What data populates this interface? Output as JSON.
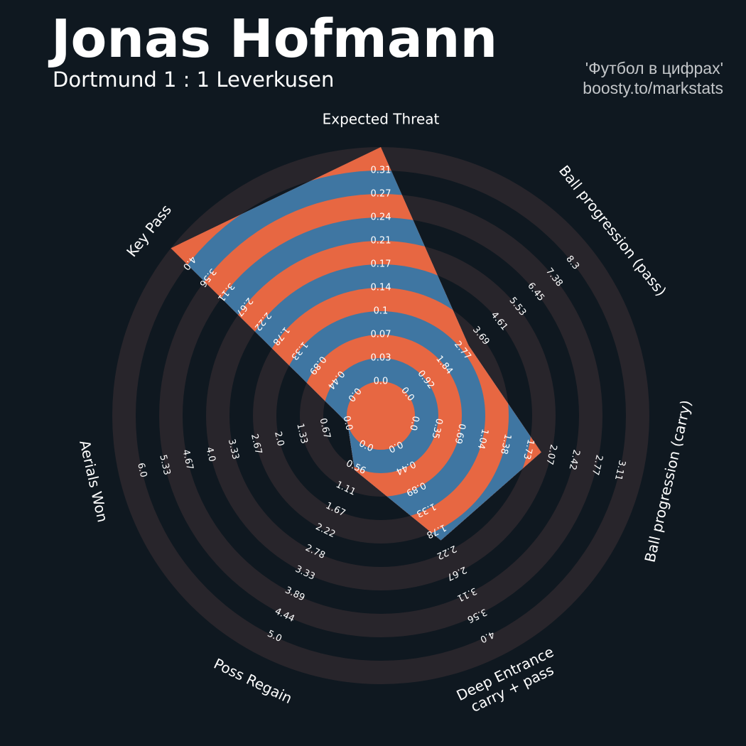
{
  "header": {
    "player_name": "Jonas Hofmann",
    "match": "Dortmund 1 : 1 Leverkusen",
    "credit_line1": "'Футбол в цифрах'",
    "credit_line2": "boosty.to/markstats"
  },
  "colors": {
    "background": "#0f1820",
    "ring_dark": "#28252b",
    "ring_light": "#0f1820",
    "polygon_main": "#3f76a2",
    "polygon_alt": "#e76742",
    "text": "#ffffff",
    "credit": "#c3c6c9"
  },
  "chart_data": {
    "type": "radar",
    "title": "Jonas Hofmann",
    "subtitle": "Dortmund 1 : 1 Leverkusen",
    "params": [
      {
        "name": "Expected Threat",
        "lines": [
          "Expected Threat"
        ],
        "value": 0.31,
        "ticks": [
          "0.0",
          "0.03",
          "0.07",
          "0.1",
          "0.14",
          "0.17",
          "0.21",
          "0.24",
          "0.27",
          "0.31"
        ]
      },
      {
        "name": "Ball progression (pass)",
        "lines": [
          "Ball progression (pass)"
        ],
        "value": 2.77,
        "ticks": [
          "0.0",
          "0.92",
          "1.84",
          "2.77",
          "3.69",
          "4.61",
          "5.53",
          "6.45",
          "7.38",
          "8.3"
        ]
      },
      {
        "name": "Ball progression (carry)",
        "lines": [
          "Ball progression (carry)"
        ],
        "value": 1.73,
        "ticks": [
          "0.0",
          "0.35",
          "0.69",
          "1.04",
          "1.38",
          "1.73",
          "2.07",
          "2.42",
          "2.77",
          "3.11"
        ]
      },
      {
        "name": "Deep Entrance carry + pass",
        "lines": [
          "Deep Entrance",
          "carry + pass"
        ],
        "value": 1.78,
        "ticks": [
          "0.0",
          "0.44",
          "0.89",
          "1.33",
          "1.78",
          "2.22",
          "2.67",
          "3.11",
          "3.56",
          "4.0"
        ]
      },
      {
        "name": "Poss Regain",
        "lines": [
          "Poss Regain"
        ],
        "value": 0.56,
        "ticks": [
          "0.0",
          "0.56",
          "1.11",
          "1.67",
          "2.22",
          "2.78",
          "3.33",
          "3.89",
          "4.44",
          "5.0"
        ]
      },
      {
        "name": "Aerials Won",
        "lines": [
          "Aerials Won"
        ],
        "value": 0.0,
        "ticks": [
          "0.0",
          "0.67",
          "1.33",
          "2.0",
          "2.67",
          "3.33",
          "4.0",
          "4.67",
          "5.33",
          "6.0"
        ]
      },
      {
        "name": "Key Pass",
        "lines": [
          "Key Pass"
        ],
        "value": 4.0,
        "ticks": [
          "0.0",
          "0.44",
          "0.89",
          "1.33",
          "1.78",
          "2.22",
          "2.67",
          "3.11",
          "3.56",
          "4.0"
        ]
      }
    ],
    "min": 0,
    "rings": 10
  }
}
